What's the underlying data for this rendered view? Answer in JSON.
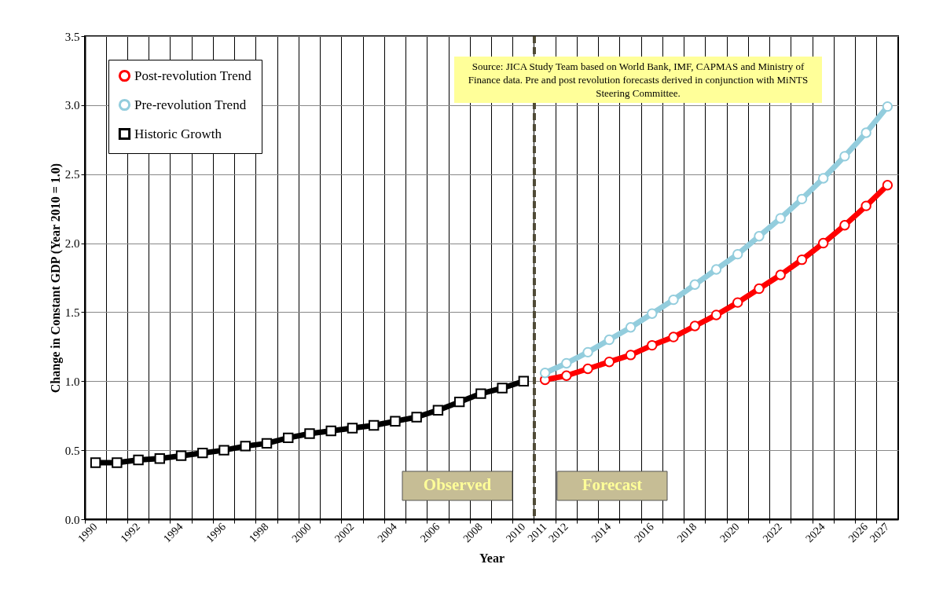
{
  "chart_data": {
    "type": "line",
    "xlabel": "Year",
    "ylabel": "Change in Constant GDP (Year 2010 = 1.0)",
    "categories": [
      "1990",
      null,
      "1992",
      null,
      "1994",
      null,
      "1996",
      null,
      "1998",
      null,
      "2000",
      null,
      "2002",
      null,
      "2004",
      null,
      "2006",
      null,
      "2008",
      null,
      "2010",
      "2011",
      "2012",
      null,
      "2014",
      null,
      "2016",
      null,
      "2018",
      null,
      "2020",
      null,
      "2022",
      null,
      "2024",
      null,
      "2026",
      "2027"
    ],
    "series": [
      {
        "name": "Post-revolution Trend",
        "color": "#ff0000",
        "marker": "circle",
        "values": [
          null,
          null,
          null,
          null,
          null,
          null,
          null,
          null,
          null,
          null,
          null,
          null,
          null,
          null,
          null,
          null,
          null,
          null,
          null,
          null,
          null,
          1.01,
          1.04,
          1.09,
          1.14,
          1.19,
          1.26,
          1.32,
          1.4,
          1.48,
          1.57,
          1.67,
          1.77,
          1.88,
          2.0,
          2.13,
          2.27,
          2.42
        ]
      },
      {
        "name": "Pre-revolution Trend",
        "color": "#93cddd",
        "marker": "circle",
        "values": [
          null,
          null,
          null,
          null,
          null,
          null,
          null,
          null,
          null,
          null,
          null,
          null,
          null,
          null,
          null,
          null,
          null,
          null,
          null,
          null,
          null,
          1.06,
          1.13,
          1.21,
          1.3,
          1.39,
          1.49,
          1.59,
          1.7,
          1.81,
          1.92,
          2.05,
          2.18,
          2.32,
          2.47,
          2.63,
          2.8,
          2.99
        ]
      },
      {
        "name": "Historic Growth",
        "color": "#000000",
        "marker": "square",
        "values": [
          0.41,
          0.41,
          0.43,
          0.44,
          0.46,
          0.48,
          0.5,
          0.53,
          0.55,
          0.59,
          0.62,
          0.64,
          0.66,
          0.68,
          0.71,
          0.74,
          0.79,
          0.85,
          0.91,
          0.95,
          1.0,
          null,
          null,
          null,
          null,
          null,
          null,
          null,
          null,
          null,
          null,
          null,
          null,
          null,
          null,
          null,
          null,
          null
        ]
      }
    ],
    "ylim": [
      0,
      3.5
    ],
    "yticks": [
      {
        "value": 0,
        "label": "0.0"
      },
      {
        "value": 0.5,
        "label": "0.5"
      },
      {
        "value": 1,
        "label": "1.0"
      },
      {
        "value": 1.5,
        "label": "1.5"
      },
      {
        "value": 2,
        "label": "2.0"
      },
      {
        "value": 2.5,
        "label": "2.5"
      },
      {
        "value": 3,
        "label": "3.0"
      },
      {
        "value": 3.5,
        "label": "3.5"
      }
    ],
    "grid": true,
    "legend": "top left",
    "ref_lines": [
      {
        "axis": "x",
        "value": "2011",
        "color": "#4f4a36",
        "line_style": "dashed"
      }
    ],
    "annotations": [
      "Source: JICA Study Team based on World Bank,  IMF, CAPMAS and Ministry of Finance data. Pre and post revolution forecasts derived in conjunction with MiNTS Steering Committee.",
      "Observed",
      "Forecast"
    ]
  }
}
